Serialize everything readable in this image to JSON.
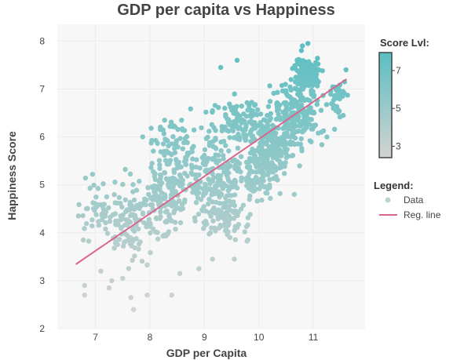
{
  "chart_data": {
    "type": "scatter",
    "title": "GDP per capita vs Happiness",
    "xlabel": "GDP per Capita",
    "ylabel": "Happiness Score",
    "xlim": [
      6.3,
      11.95
    ],
    "ylim": [
      2.0,
      8.35
    ],
    "xticks": [
      7,
      8,
      9,
      10,
      11
    ],
    "yticks": [
      2,
      3,
      4,
      5,
      6,
      7,
      8
    ],
    "grid": true,
    "colorbar": {
      "title": "Score Lvl:",
      "ticks": [
        3,
        5,
        7
      ],
      "range": [
        2.4,
        7.95
      ],
      "colors": [
        "#d3d3d0",
        "#5bbfc2"
      ]
    },
    "legend": {
      "title": "Legend:",
      "position": "right",
      "items": [
        {
          "label": "Data",
          "type": "point",
          "color": "#b9d6d0"
        },
        {
          "label": "Reg. line",
          "type": "line",
          "color": "#d9668f"
        }
      ]
    },
    "regression_line": {
      "x": [
        6.65,
        11.6
      ],
      "y": [
        3.35,
        7.2
      ],
      "color": "#d9668f"
    },
    "clusters": [
      {
        "cx": 7.0,
        "cy": 4.45,
        "sx": 0.22,
        "sy": 0.45,
        "n": 40
      },
      {
        "cx": 7.6,
        "cy": 4.25,
        "sx": 0.28,
        "sy": 0.55,
        "n": 110
      },
      {
        "cx": 8.2,
        "cy": 4.6,
        "sx": 0.28,
        "sy": 0.5,
        "n": 110
      },
      {
        "cx": 8.5,
        "cy": 5.2,
        "sx": 0.35,
        "sy": 0.45,
        "n": 100
      },
      {
        "cx": 8.4,
        "cy": 5.95,
        "sx": 0.35,
        "sy": 0.35,
        "n": 50
      },
      {
        "cx": 9.2,
        "cy": 5.2,
        "sx": 0.35,
        "sy": 0.6,
        "n": 150
      },
      {
        "cx": 9.4,
        "cy": 4.3,
        "sx": 0.3,
        "sy": 0.35,
        "n": 90
      },
      {
        "cx": 9.7,
        "cy": 6.3,
        "sx": 0.35,
        "sy": 0.4,
        "n": 120
      },
      {
        "cx": 10.0,
        "cy": 5.3,
        "sx": 0.3,
        "sy": 0.45,
        "n": 130
      },
      {
        "cx": 10.3,
        "cy": 5.8,
        "sx": 0.3,
        "sy": 0.45,
        "n": 170
      },
      {
        "cx": 10.7,
        "cy": 6.5,
        "sx": 0.3,
        "sy": 0.45,
        "n": 190
      },
      {
        "cx": 10.9,
        "cy": 7.3,
        "sx": 0.2,
        "sy": 0.25,
        "n": 110
      },
      {
        "cx": 11.45,
        "cy": 6.8,
        "sx": 0.12,
        "sy": 0.35,
        "n": 35
      }
    ],
    "extra_points": [
      {
        "x": 6.8,
        "y": 2.7
      },
      {
        "x": 6.8,
        "y": 2.9
      },
      {
        "x": 7.25,
        "y": 2.85
      },
      {
        "x": 7.3,
        "y": 3.0
      },
      {
        "x": 7.7,
        "y": 2.4
      },
      {
        "x": 7.65,
        "y": 2.65
      },
      {
        "x": 7.95,
        "y": 2.7
      },
      {
        "x": 8.4,
        "y": 2.7
      },
      {
        "x": 8.55,
        "y": 3.15
      },
      {
        "x": 7.5,
        "y": 3.05
      },
      {
        "x": 7.1,
        "y": 3.2
      },
      {
        "x": 9.3,
        "y": 7.45
      },
      {
        "x": 9.6,
        "y": 7.6
      },
      {
        "x": 10.8,
        "y": 7.9
      },
      {
        "x": 10.9,
        "y": 7.95
      },
      {
        "x": 11.6,
        "y": 7.4
      },
      {
        "x": 11.55,
        "y": 6.45
      },
      {
        "x": 11.15,
        "y": 6.1
      },
      {
        "x": 11.25,
        "y": 6.0
      },
      {
        "x": 10.65,
        "y": 4.8
      },
      {
        "x": 9.8,
        "y": 3.85
      },
      {
        "x": 9.15,
        "y": 3.45
      },
      {
        "x": 9.55,
        "y": 3.45
      },
      {
        "x": 8.9,
        "y": 3.25
      }
    ]
  }
}
